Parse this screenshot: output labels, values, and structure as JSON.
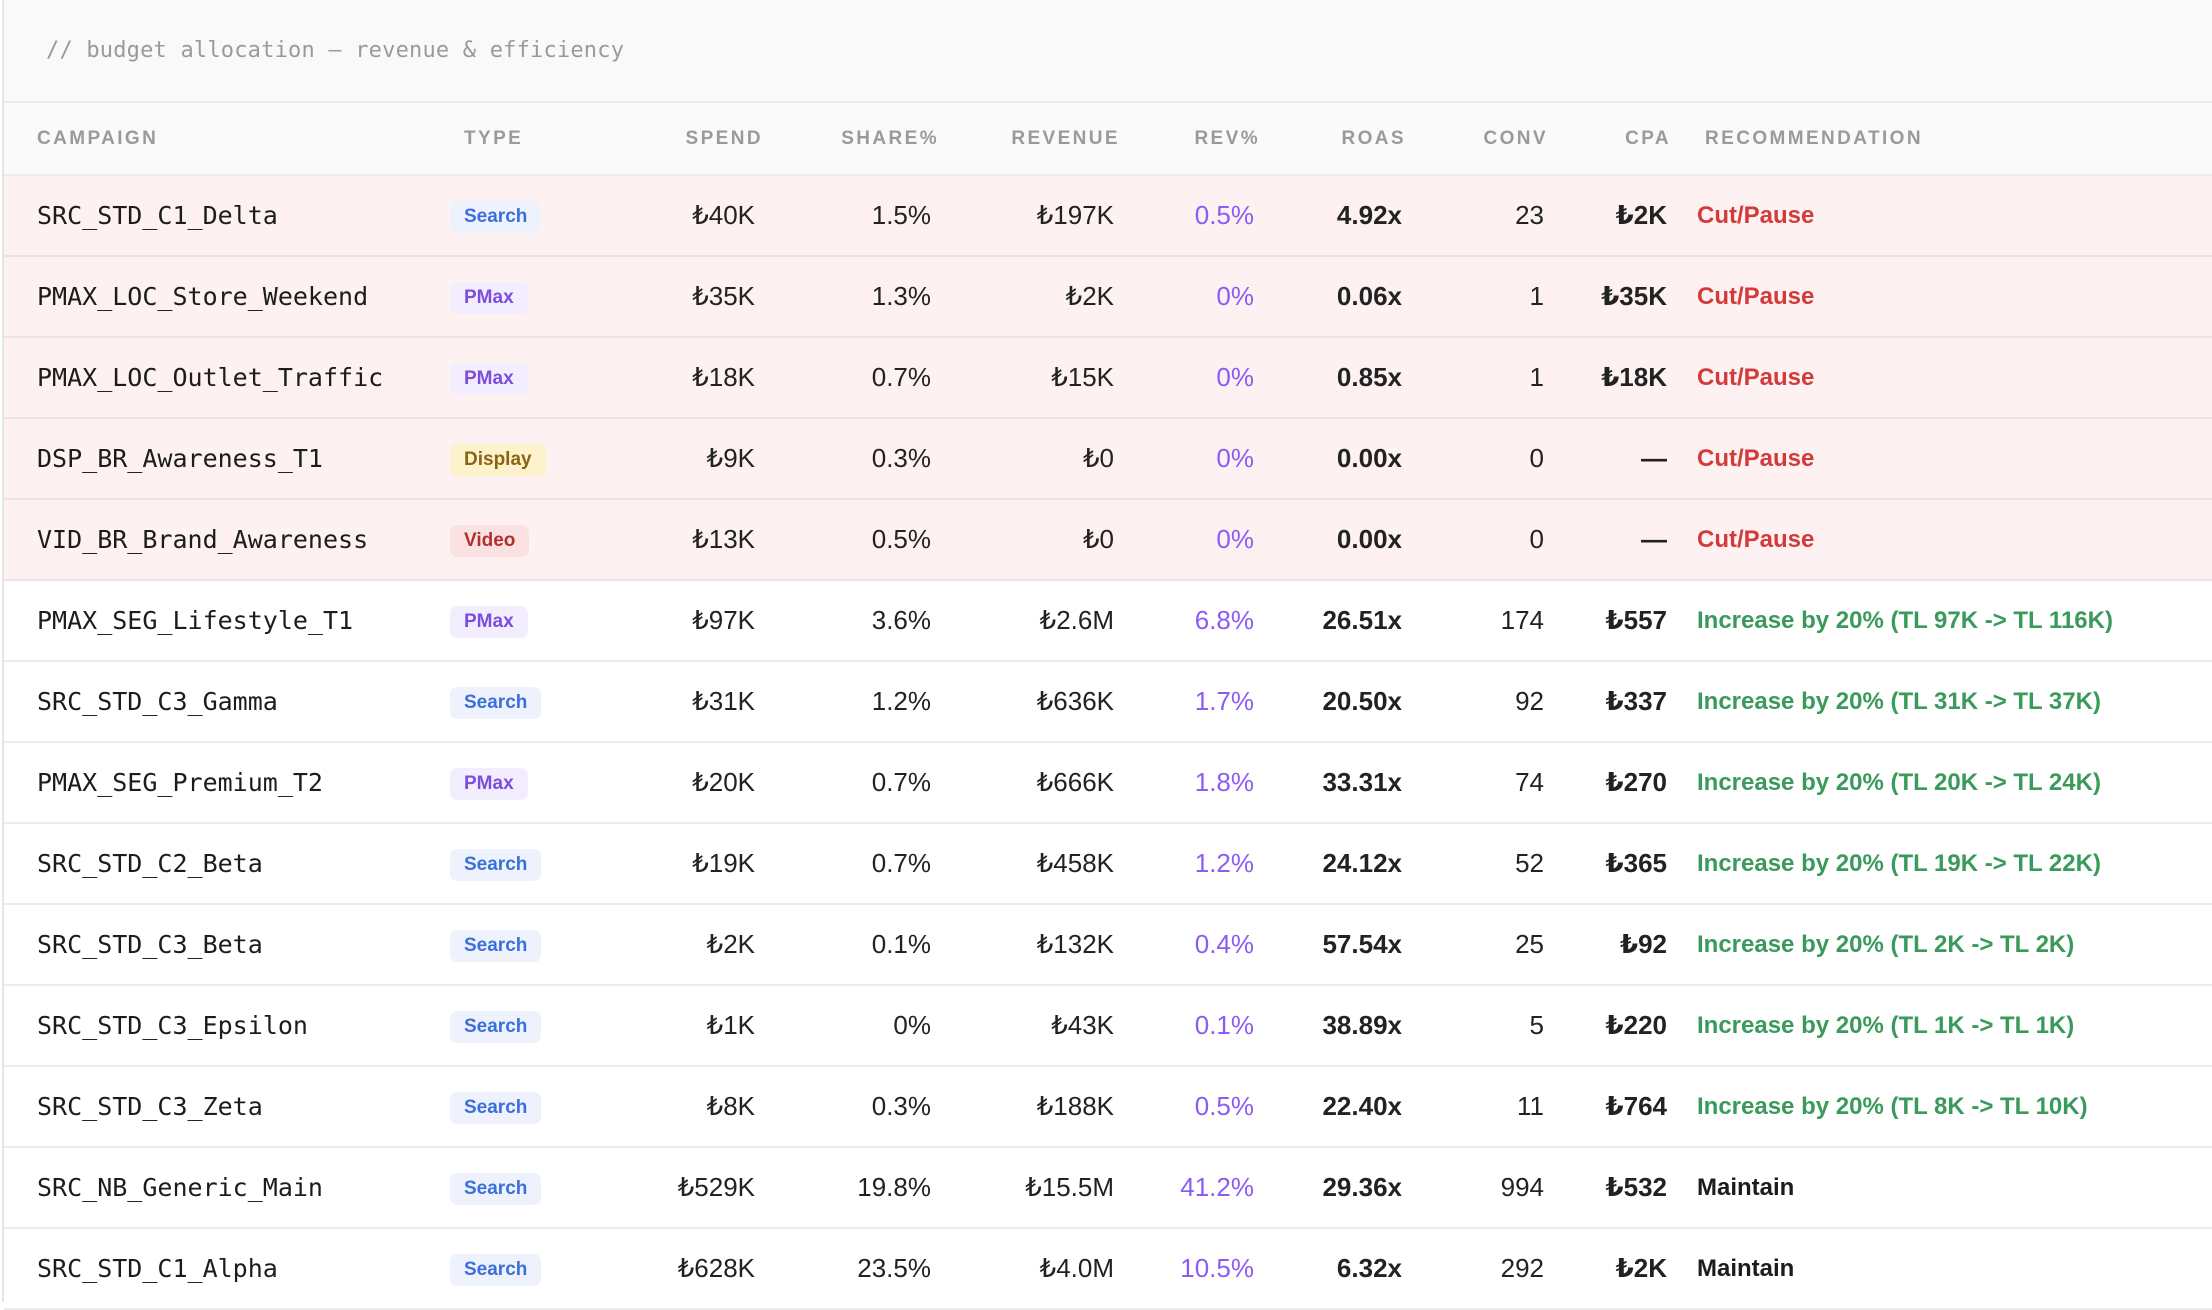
{
  "caption": "// budget allocation — revenue & efficiency",
  "headers": {
    "campaign": "CAMPAIGN",
    "type": "TYPE",
    "spend": "SPEND",
    "share": "SHARE%",
    "revenue": "REVENUE",
    "revpct": "REV%",
    "roas": "ROAS",
    "conv": "CONV",
    "cpa": "CPA",
    "recommendation": "RECOMMENDATION"
  },
  "colors": {
    "good": "#3a9a5b",
    "bad": "#d33a3a",
    "warn": "#eba232",
    "revpct": "#8b5cf6",
    "cut_row_bg": "#fdf1f1"
  },
  "rows": [
    {
      "campaign": "SRC_STD_C1_Delta",
      "type": "Search",
      "spend": "₺40K",
      "share": "1.5%",
      "revenue": "₺197K",
      "revpct": "0.5%",
      "roas": "4.92x",
      "roas_status": "warn",
      "conv": "23",
      "cpa": "₺2K",
      "cpa_status": "bad",
      "recommendation": "Cut/Pause",
      "rec_status": "bad",
      "row_status": "cut"
    },
    {
      "campaign": "PMAX_LOC_Store_Weekend",
      "type": "PMax",
      "spend": "₺35K",
      "share": "1.3%",
      "revenue": "₺2K",
      "revpct": "0%",
      "roas": "0.06x",
      "roas_status": "bad",
      "conv": "1",
      "cpa": "₺35K",
      "cpa_status": "bad",
      "recommendation": "Cut/Pause",
      "rec_status": "bad",
      "row_status": "cut"
    },
    {
      "campaign": "PMAX_LOC_Outlet_Traffic",
      "type": "PMax",
      "spend": "₺18K",
      "share": "0.7%",
      "revenue": "₺15K",
      "revpct": "0%",
      "roas": "0.85x",
      "roas_status": "bad",
      "conv": "1",
      "cpa": "₺18K",
      "cpa_status": "bad",
      "recommendation": "Cut/Pause",
      "rec_status": "bad",
      "row_status": "cut"
    },
    {
      "campaign": "DSP_BR_Awareness_T1",
      "type": "Display",
      "spend": "₺9K",
      "share": "0.3%",
      "revenue": "₺0",
      "revpct": "0%",
      "roas": "0.00x",
      "roas_status": "bad",
      "conv": "0",
      "cpa": "—",
      "cpa_status": "good",
      "recommendation": "Cut/Pause",
      "rec_status": "bad",
      "row_status": "cut"
    },
    {
      "campaign": "VID_BR_Brand_Awareness",
      "type": "Video",
      "spend": "₺13K",
      "share": "0.5%",
      "revenue": "₺0",
      "revpct": "0%",
      "roas": "0.00x",
      "roas_status": "bad",
      "conv": "0",
      "cpa": "—",
      "cpa_status": "good",
      "recommendation": "Cut/Pause",
      "rec_status": "bad",
      "row_status": "cut"
    },
    {
      "campaign": "PMAX_SEG_Lifestyle_T1",
      "type": "PMax",
      "spend": "₺97K",
      "share": "3.6%",
      "revenue": "₺2.6M",
      "revpct": "6.8%",
      "roas": "26.51x",
      "roas_status": "good",
      "conv": "174",
      "cpa": "₺557",
      "cpa_status": "good",
      "recommendation": "Increase by 20% (TL 97K -> TL 116K)",
      "rec_status": "good",
      "row_status": "normal"
    },
    {
      "campaign": "SRC_STD_C3_Gamma",
      "type": "Search",
      "spend": "₺31K",
      "share": "1.2%",
      "revenue": "₺636K",
      "revpct": "1.7%",
      "roas": "20.50x",
      "roas_status": "good",
      "conv": "92",
      "cpa": "₺337",
      "cpa_status": "good",
      "recommendation": "Increase by 20% (TL 31K -> TL 37K)",
      "rec_status": "good",
      "row_status": "normal"
    },
    {
      "campaign": "PMAX_SEG_Premium_T2",
      "type": "PMax",
      "spend": "₺20K",
      "share": "0.7%",
      "revenue": "₺666K",
      "revpct": "1.8%",
      "roas": "33.31x",
      "roas_status": "good",
      "conv": "74",
      "cpa": "₺270",
      "cpa_status": "good",
      "recommendation": "Increase by 20% (TL 20K -> TL 24K)",
      "rec_status": "good",
      "row_status": "normal"
    },
    {
      "campaign": "SRC_STD_C2_Beta",
      "type": "Search",
      "spend": "₺19K",
      "share": "0.7%",
      "revenue": "₺458K",
      "revpct": "1.2%",
      "roas": "24.12x",
      "roas_status": "good",
      "conv": "52",
      "cpa": "₺365",
      "cpa_status": "good",
      "recommendation": "Increase by 20% (TL 19K -> TL 22K)",
      "rec_status": "good",
      "row_status": "normal"
    },
    {
      "campaign": "SRC_STD_C3_Beta",
      "type": "Search",
      "spend": "₺2K",
      "share": "0.1%",
      "revenue": "₺132K",
      "revpct": "0.4%",
      "roas": "57.54x",
      "roas_status": "good",
      "conv": "25",
      "cpa": "₺92",
      "cpa_status": "good",
      "recommendation": "Increase by 20% (TL 2K -> TL 2K)",
      "rec_status": "good",
      "row_status": "normal"
    },
    {
      "campaign": "SRC_STD_C3_Epsilon",
      "type": "Search",
      "spend": "₺1K",
      "share": "0%",
      "revenue": "₺43K",
      "revpct": "0.1%",
      "roas": "38.89x",
      "roas_status": "good",
      "conv": "5",
      "cpa": "₺220",
      "cpa_status": "good",
      "recommendation": "Increase by 20% (TL 1K -> TL 1K)",
      "rec_status": "good",
      "row_status": "normal"
    },
    {
      "campaign": "SRC_STD_C3_Zeta",
      "type": "Search",
      "spend": "₺8K",
      "share": "0.3%",
      "revenue": "₺188K",
      "revpct": "0.5%",
      "roas": "22.40x",
      "roas_status": "good",
      "conv": "11",
      "cpa": "₺764",
      "cpa_status": "warn",
      "recommendation": "Increase by 20% (TL 8K -> TL 10K)",
      "rec_status": "good",
      "row_status": "normal"
    },
    {
      "campaign": "SRC_NB_Generic_Main",
      "type": "Search",
      "spend": "₺529K",
      "share": "19.8%",
      "revenue": "₺15.5M",
      "revpct": "41.2%",
      "roas": "29.36x",
      "roas_status": "good",
      "conv": "994",
      "cpa": "₺532",
      "cpa_status": "good",
      "recommendation": "Maintain",
      "rec_status": "neutral",
      "row_status": "normal"
    },
    {
      "campaign": "SRC_STD_C1_Alpha",
      "type": "Search",
      "spend": "₺628K",
      "share": "23.5%",
      "revenue": "₺4.0M",
      "revpct": "10.5%",
      "roas": "6.32x",
      "roas_status": "warn",
      "conv": "292",
      "cpa": "₺2K",
      "cpa_status": "bad",
      "recommendation": "Maintain",
      "rec_status": "neutral",
      "row_status": "normal"
    }
  ]
}
